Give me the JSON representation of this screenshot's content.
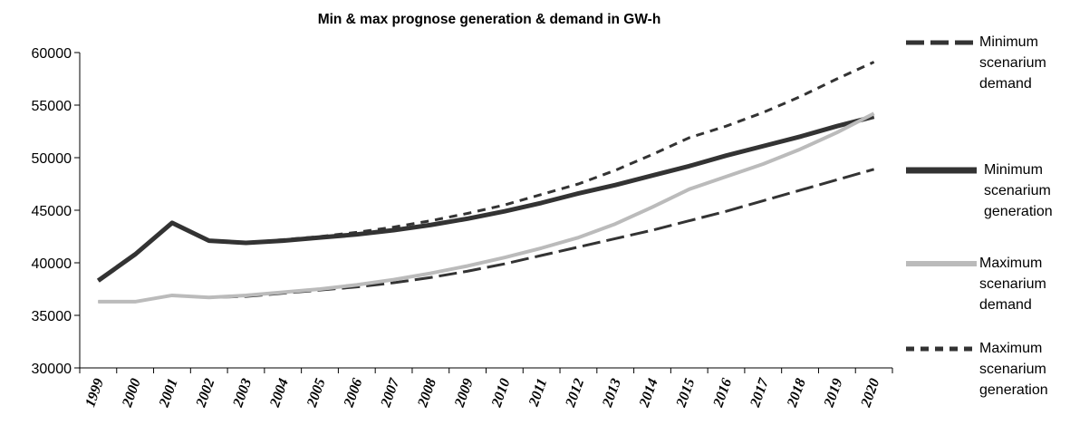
{
  "chart_data": {
    "type": "line",
    "title": "Min & max prognose generation & demand in GW-h",
    "categories": [
      "1999",
      "2000",
      "2001",
      "2002",
      "2003",
      "2004",
      "2005",
      "2006",
      "2007",
      "2008",
      "2009",
      "2010",
      "2011",
      "2012",
      "2013",
      "2014",
      "2015",
      "2016",
      "2017",
      "2018",
      "2019",
      "2020"
    ],
    "series": [
      {
        "name": "Minimum scenarium demand",
        "color": "#333333",
        "line_style": "long-dash",
        "values": [
          36300,
          36300,
          36900,
          36700,
          36800,
          37100,
          37400,
          37700,
          38100,
          38600,
          39200,
          39900,
          40700,
          41500,
          42300,
          43100,
          44000,
          44900,
          45900,
          46900,
          47900,
          48900
        ]
      },
      {
        "name": "Minimum scenarium generation",
        "color": "#333333",
        "line_style": "thick",
        "values": [
          38300,
          40800,
          43800,
          42100,
          41900,
          42100,
          42400,
          42700,
          43100,
          43600,
          44200,
          44900,
          45700,
          46600,
          47400,
          48300,
          49200,
          50200,
          51100,
          52000,
          53000,
          53900
        ]
      },
      {
        "name": "Maximum scenarium demand",
        "color": "#bbbbbb",
        "line_style": "solid",
        "values": [
          36300,
          36300,
          36900,
          36700,
          36900,
          37200,
          37500,
          37900,
          38400,
          39000,
          39700,
          40500,
          41400,
          42400,
          43700,
          45300,
          47000,
          48200,
          49400,
          50800,
          52400,
          54200
        ]
      },
      {
        "name": "Maximum scenarium generation",
        "color": "#333333",
        "line_style": "short-dash",
        "values": [
          38300,
          40800,
          43800,
          42100,
          41900,
          42200,
          42500,
          42900,
          43400,
          44000,
          44700,
          45500,
          46500,
          47500,
          48800,
          50300,
          51900,
          53000,
          54300,
          55800,
          57500,
          59100
        ]
      }
    ],
    "ylim": [
      30000,
      60000
    ],
    "yticks": [
      30000,
      35000,
      40000,
      45000,
      50000,
      55000,
      60000
    ]
  }
}
